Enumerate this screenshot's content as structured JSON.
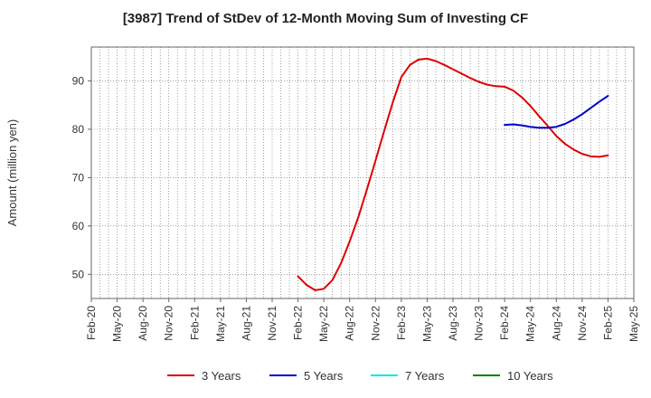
{
  "chart_data": {
    "type": "line",
    "title": "[3987]  Trend of StDev of 12-Month Moving Sum of Investing CF",
    "xlabel": "",
    "ylabel": "Amount (million yen)",
    "x_ticks": [
      "Feb-20",
      "May-20",
      "Aug-20",
      "Nov-20",
      "Feb-21",
      "May-21",
      "Aug-21",
      "Nov-21",
      "Feb-22",
      "May-22",
      "Aug-22",
      "Nov-22",
      "Feb-23",
      "May-23",
      "Aug-23",
      "Nov-23",
      "Feb-24",
      "May-24",
      "Aug-24",
      "Nov-24",
      "Feb-25",
      "May-25"
    ],
    "y_ticks": [
      50,
      60,
      70,
      80,
      90
    ],
    "ylim": [
      45,
      97
    ],
    "xlim": [
      "2020-02",
      "2025-05"
    ],
    "grid": true,
    "legend_position": "bottom",
    "series": [
      {
        "name": "3 Years",
        "color": "#dd0000",
        "points": [
          [
            "2022-02",
            49.6
          ],
          [
            "2022-03",
            47.8
          ],
          [
            "2022-04",
            46.7
          ],
          [
            "2022-05",
            47.0
          ],
          [
            "2022-06",
            48.8
          ],
          [
            "2022-07",
            52.3
          ],
          [
            "2022-08",
            56.8
          ],
          [
            "2022-09",
            61.8
          ],
          [
            "2022-10",
            67.5
          ],
          [
            "2022-11",
            73.5
          ],
          [
            "2022-12",
            79.6
          ],
          [
            "2023-01",
            85.5
          ],
          [
            "2023-02",
            90.8
          ],
          [
            "2023-03",
            93.3
          ],
          [
            "2023-04",
            94.4
          ],
          [
            "2023-05",
            94.6
          ],
          [
            "2023-06",
            94.1
          ],
          [
            "2023-07",
            93.3
          ],
          [
            "2023-08",
            92.4
          ],
          [
            "2023-09",
            91.5
          ],
          [
            "2023-10",
            90.6
          ],
          [
            "2023-11",
            89.8
          ],
          [
            "2023-12",
            89.2
          ],
          [
            "2024-01",
            88.9
          ],
          [
            "2024-02",
            88.8
          ],
          [
            "2024-03",
            88.0
          ],
          [
            "2024-04",
            86.6
          ],
          [
            "2024-05",
            84.8
          ],
          [
            "2024-06",
            82.7
          ],
          [
            "2024-07",
            80.7
          ],
          [
            "2024-08",
            78.6
          ],
          [
            "2024-09",
            77.0
          ],
          [
            "2024-10",
            75.8
          ],
          [
            "2024-11",
            74.9
          ],
          [
            "2024-12",
            74.4
          ],
          [
            "2025-01",
            74.3
          ],
          [
            "2025-02",
            74.6
          ]
        ]
      },
      {
        "name": "5 Years",
        "color": "#0000cc",
        "points": [
          [
            "2024-02",
            80.9
          ],
          [
            "2024-03",
            81.0
          ],
          [
            "2024-04",
            80.8
          ],
          [
            "2024-05",
            80.5
          ],
          [
            "2024-06",
            80.3
          ],
          [
            "2024-07",
            80.3
          ],
          [
            "2024-08",
            80.5
          ],
          [
            "2024-09",
            81.1
          ],
          [
            "2024-10",
            82.0
          ],
          [
            "2024-11",
            83.1
          ],
          [
            "2024-12",
            84.4
          ],
          [
            "2025-01",
            85.7
          ],
          [
            "2025-02",
            86.9
          ]
        ]
      },
      {
        "name": "7 Years",
        "color": "#00e5ee",
        "points": []
      },
      {
        "name": "10 Years",
        "color": "#008000",
        "points": []
      }
    ]
  }
}
